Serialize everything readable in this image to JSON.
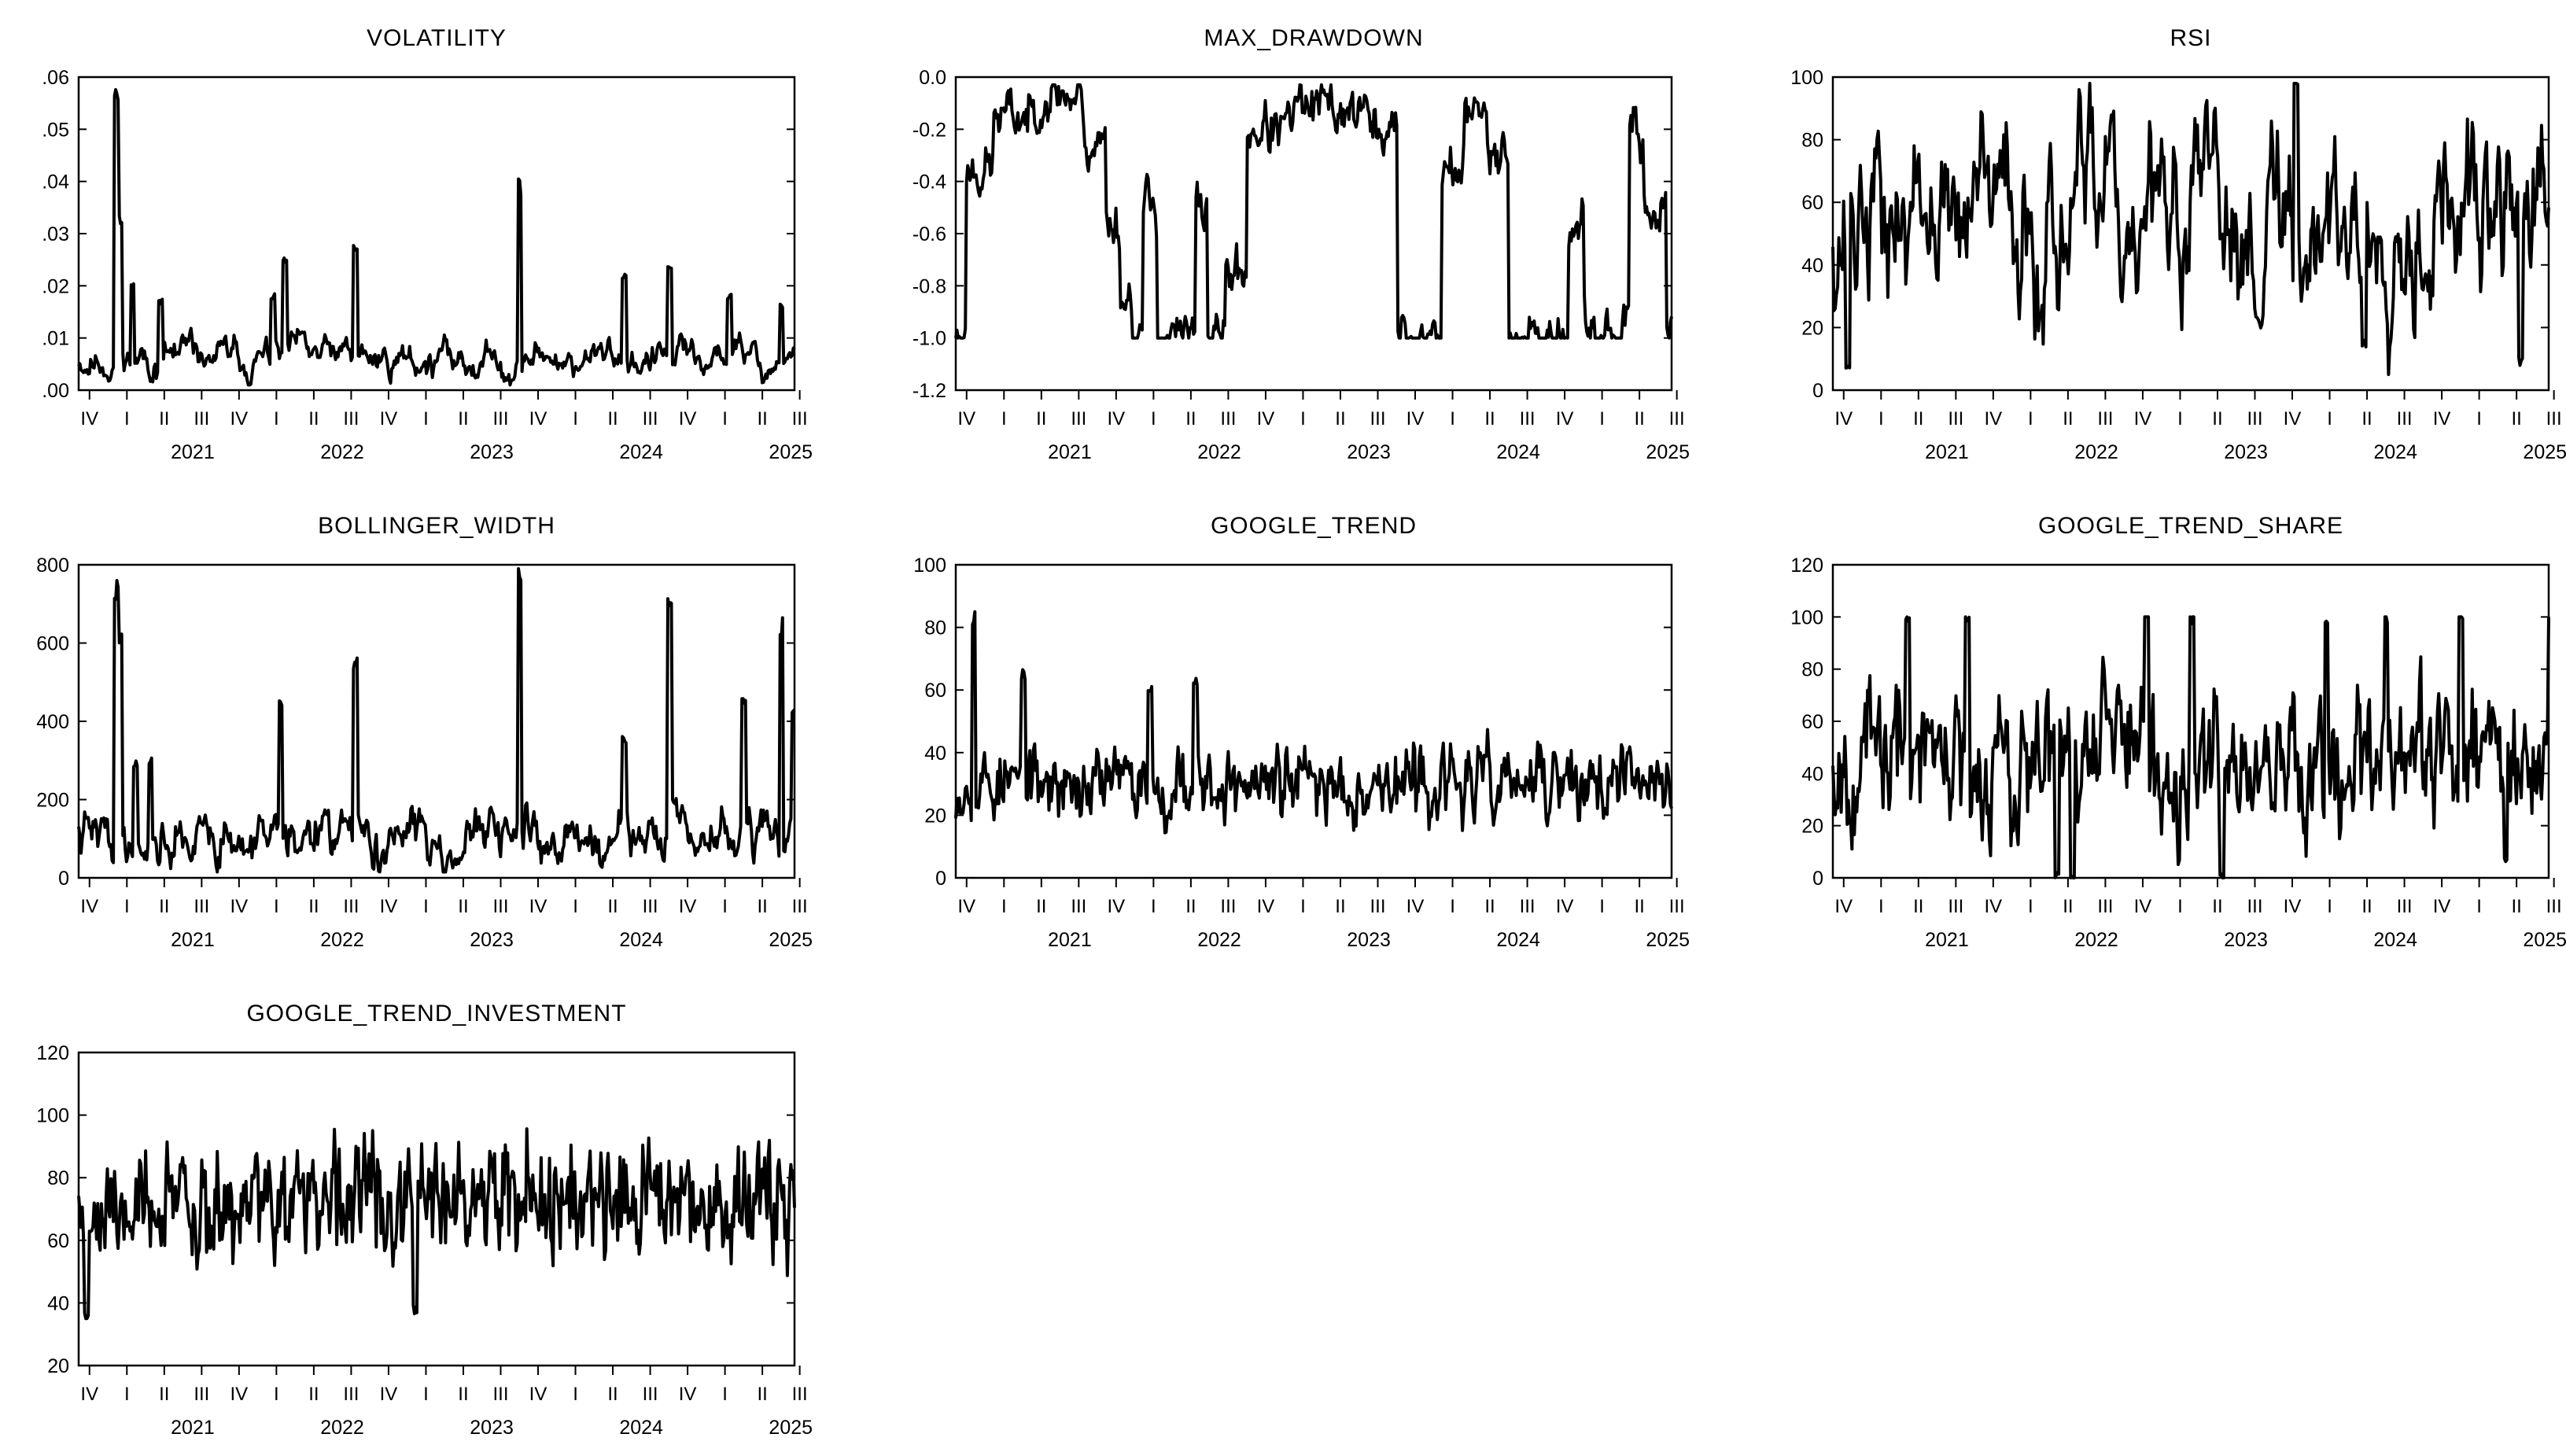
{
  "figure": {
    "line_color": "#000000",
    "background": "#ffffff",
    "period_start": "2020-10",
    "period_end": "2025-08"
  },
  "x_axis": {
    "quarter_ticks": [
      "IV",
      "I",
      "II",
      "III",
      "IV",
      "I",
      "II",
      "III",
      "IV",
      "I",
      "II",
      "III",
      "IV",
      "I",
      "II",
      "III",
      "IV",
      "I",
      "II",
      "III"
    ],
    "year_labels": [
      "2021",
      "2022",
      "2023",
      "2024",
      "2025"
    ]
  },
  "chart_data": [
    {
      "type": "line",
      "title": "VOLATILITY",
      "ylim": [
        0,
        0.06
      ],
      "yticks": [
        ".00",
        ".01",
        ".02",
        ".03",
        ".04",
        ".05",
        ".06"
      ],
      "ytick_values": [
        0,
        0.01,
        0.02,
        0.03,
        0.04,
        0.05,
        0.06
      ],
      "base": 0.006,
      "noise": 0.002,
      "floor": 0.001,
      "ceil": 0.06,
      "seed": 11,
      "phi": 0.85,
      "spikes": [
        [
          0.25,
          0.057
        ],
        [
          0.28,
          0.033
        ],
        [
          0.36,
          0.02
        ],
        [
          0.55,
          0.017
        ],
        [
          1.3,
          0.018
        ],
        [
          1.38,
          0.025
        ],
        [
          1.85,
          0.027
        ],
        [
          2.95,
          0.039
        ],
        [
          3.65,
          0.022
        ],
        [
          3.95,
          0.023
        ],
        [
          4.35,
          0.018
        ],
        [
          4.7,
          0.016
        ]
      ]
    },
    {
      "type": "line",
      "title": "MAX_DRAWDOWN",
      "ylim": [
        -1.2,
        0.0
      ],
      "yticks": [
        "-1.2",
        "-1.0",
        "-0.8",
        "-0.6",
        "-0.4",
        "-0.2",
        "0.0"
      ],
      "ytick_values": [
        -1.2,
        -1.0,
        -0.8,
        -0.6,
        -0.4,
        -0.2,
        0.0
      ],
      "regime": [
        [
          0.0,
          0.07,
          -1.0
        ],
        [
          0.07,
          0.25,
          -0.35
        ],
        [
          0.25,
          0.55,
          -0.15
        ],
        [
          0.55,
          0.75,
          -0.06
        ],
        [
          0.75,
          0.85,
          -0.08
        ],
        [
          0.85,
          1.0,
          -0.25
        ],
        [
          1.0,
          1.1,
          -0.55
        ],
        [
          1.1,
          1.18,
          -0.85
        ],
        [
          1.18,
          1.25,
          -1.0
        ],
        [
          1.25,
          1.35,
          -0.5
        ],
        [
          1.35,
          1.6,
          -1.0
        ],
        [
          1.6,
          1.68,
          -0.5
        ],
        [
          1.68,
          1.8,
          -1.0
        ],
        [
          1.8,
          1.95,
          -0.75
        ],
        [
          1.95,
          2.25,
          -0.2
        ],
        [
          2.25,
          2.75,
          -0.12
        ],
        [
          2.75,
          2.95,
          -0.2
        ],
        [
          2.95,
          3.25,
          -1.0
        ],
        [
          3.25,
          3.4,
          -0.35
        ],
        [
          3.4,
          3.55,
          -0.15
        ],
        [
          3.55,
          3.7,
          -0.25
        ],
        [
          3.7,
          4.1,
          -1.0
        ],
        [
          4.1,
          4.2,
          -0.6
        ],
        [
          4.2,
          4.5,
          -1.0
        ],
        [
          4.5,
          4.6,
          -0.2
        ],
        [
          4.6,
          4.75,
          -0.5
        ],
        [
          4.75,
          4.85,
          -1.0
        ]
      ],
      "noise": 0.06,
      "floor": -1.0,
      "ceil": -0.03,
      "seed": 23,
      "phi": 0.6,
      "spikes": []
    },
    {
      "type": "line",
      "title": "RSI",
      "ylim": [
        0,
        100
      ],
      "yticks": [
        "0",
        "20",
        "40",
        "60",
        "80",
        "100"
      ],
      "ytick_values": [
        0,
        20,
        40,
        60,
        80,
        100
      ],
      "base": 55,
      "noise": 16,
      "floor": 5,
      "ceil": 98,
      "seed": 37,
      "phi": 0.75,
      "spikes": [
        [
          0.1,
          8
        ],
        [
          3.1,
          98
        ],
        [
          3.55,
          14
        ],
        [
          4.6,
          10
        ]
      ]
    },
    {
      "type": "line",
      "title": "BOLLINGER_WIDTH",
      "ylim": [
        0,
        800
      ],
      "yticks": [
        "0",
        "200",
        "400",
        "600",
        "800"
      ],
      "ytick_values": [
        0,
        200,
        400,
        600,
        800
      ],
      "base": 100,
      "noise": 40,
      "floor": 15,
      "ceil": 790,
      "seed": 41,
      "phi": 0.8,
      "spikes": [
        [
          0.25,
          730
        ],
        [
          0.28,
          620
        ],
        [
          0.38,
          290
        ],
        [
          0.48,
          300
        ],
        [
          1.35,
          440
        ],
        [
          1.85,
          540
        ],
        [
          2.95,
          790
        ],
        [
          3.65,
          350
        ],
        [
          3.95,
          690
        ],
        [
          4.45,
          460
        ],
        [
          4.7,
          640
        ],
        [
          4.78,
          420
        ]
      ]
    },
    {
      "type": "line",
      "title": "GOOGLE_TREND",
      "ylim": [
        0,
        100
      ],
      "yticks": [
        "0",
        "20",
        "40",
        "60",
        "80",
        "100"
      ],
      "ytick_values": [
        0,
        20,
        40,
        60,
        80,
        100
      ],
      "base": 30,
      "noise": 7,
      "floor": 10,
      "ceil": 100,
      "seed": 53,
      "phi": 0.5,
      "spikes": [
        [
          0.12,
          83
        ],
        [
          0.45,
          65
        ],
        [
          1.3,
          60
        ],
        [
          1.6,
          63
        ],
        [
          4.83,
          79
        ]
      ]
    },
    {
      "type": "line",
      "title": "GOOGLE_TREND_SHARE",
      "ylim": [
        0,
        120
      ],
      "yticks": [
        "0",
        "20",
        "40",
        "60",
        "80",
        "100",
        "120"
      ],
      "ytick_values": [
        0,
        20,
        40,
        60,
        80,
        100,
        120
      ],
      "base": 47,
      "noise": 15,
      "floor": 0,
      "ceil": 100,
      "seed": 67,
      "phi": 0.55,
      "spikes": [
        [
          0.5,
          100
        ],
        [
          0.9,
          100
        ],
        [
          1.5,
          0
        ],
        [
          1.6,
          0
        ],
        [
          2.1,
          100
        ],
        [
          2.4,
          100
        ],
        [
          2.6,
          0
        ],
        [
          3.3,
          100
        ],
        [
          3.7,
          100
        ],
        [
          4.2,
          100
        ],
        [
          4.5,
          8
        ],
        [
          4.8,
          100
        ]
      ]
    },
    {
      "type": "line",
      "title": "GOOGLE_TREND_INVESTMENT",
      "ylim": [
        20,
        120
      ],
      "yticks": [
        "20",
        "40",
        "60",
        "80",
        "100",
        "120"
      ],
      "ytick_values": [
        20,
        40,
        60,
        80,
        100,
        120
      ],
      "base": 72,
      "noise": 11,
      "floor": 35,
      "ceil": 100,
      "seed": 79,
      "phi": 0.4,
      "spikes": [
        [
          0.05,
          35
        ],
        [
          2.25,
          38
        ]
      ]
    }
  ]
}
